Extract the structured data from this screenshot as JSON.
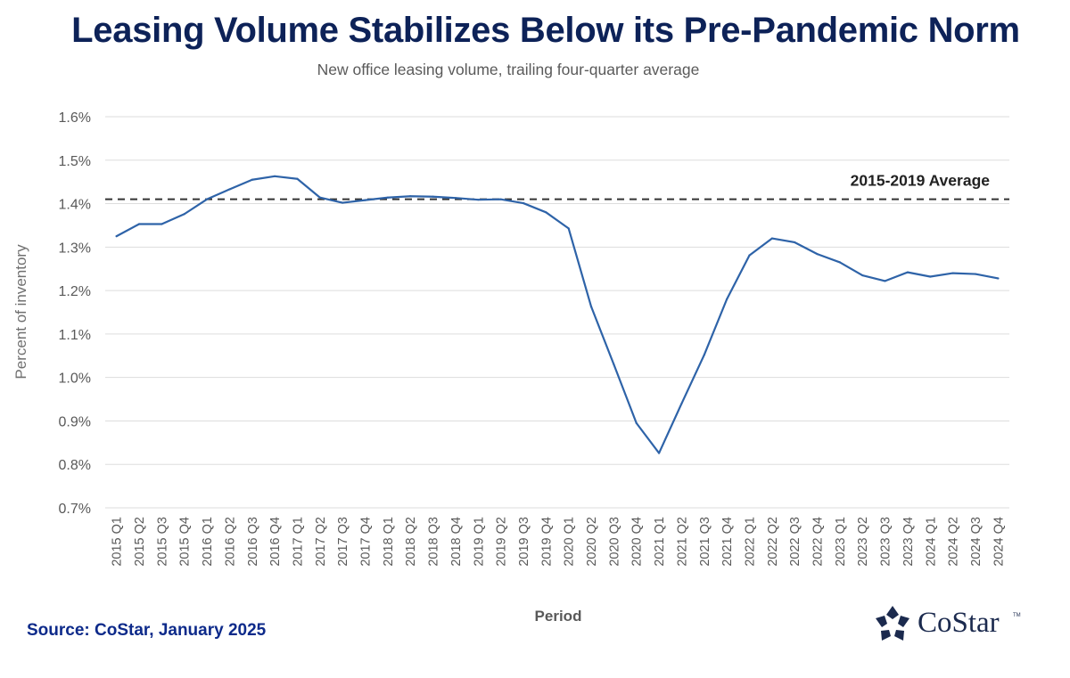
{
  "chart_data": {
    "type": "line",
    "title": "Leasing Volume Stabilizes Below its Pre-Pandemic Norm",
    "subtitle": "New office leasing volume, trailing four-quarter average",
    "xlabel": "Period",
    "ylabel": "Percent of inventory",
    "ylim": [
      0.7,
      1.6
    ],
    "y_ticks": [
      "0.7%",
      "0.8%",
      "0.9%",
      "1.0%",
      "1.1%",
      "1.2%",
      "1.3%",
      "1.4%",
      "1.5%",
      "1.6%"
    ],
    "grid": true,
    "categories": [
      "2015 Q1",
      "2015 Q2",
      "2015 Q3",
      "2015 Q4",
      "2016 Q1",
      "2016 Q2",
      "2016 Q3",
      "2016 Q4",
      "2017 Q1",
      "2017 Q2",
      "2017 Q3",
      "2017 Q4",
      "2018 Q1",
      "2018 Q2",
      "2018 Q3",
      "2018 Q4",
      "2019 Q1",
      "2019 Q2",
      "2019 Q3",
      "2019 Q4",
      "2020 Q1",
      "2020 Q2",
      "2020 Q3",
      "2020 Q4",
      "2021 Q1",
      "2021 Q2",
      "2021 Q3",
      "2021 Q4",
      "2022 Q1",
      "2022 Q2",
      "2022 Q3",
      "2022 Q4",
      "2023 Q1",
      "2023 Q2",
      "2023 Q3",
      "2023 Q4",
      "2024 Q1",
      "2024 Q2",
      "2024 Q3",
      "2024 Q4"
    ],
    "series": [
      {
        "values": [
          1.325,
          1.353,
          1.353,
          1.376,
          1.41,
          1.433,
          1.455,
          1.463,
          1.457,
          1.414,
          1.402,
          1.408,
          1.414,
          1.417,
          1.416,
          1.413,
          1.409,
          1.41,
          1.401,
          1.38,
          1.343,
          1.163,
          1.03,
          0.895,
          0.826,
          0.94,
          1.052,
          1.18,
          1.281,
          1.32,
          1.311,
          1.284,
          1.265,
          1.235,
          1.222,
          1.242,
          1.232,
          1.24,
          1.238,
          1.228
        ],
        "color": "#2e63a8"
      }
    ],
    "reference_line": {
      "label": "2015-2019 Average",
      "value": 1.41,
      "color": "#333333"
    }
  },
  "footer": {
    "source": "Source: CoStar, January 2025",
    "logo_text": "CoStar",
    "logo_tm": "TM"
  },
  "colors": {
    "title": "#0d2258",
    "source": "#0d2a8a",
    "grid": "#dddddd",
    "axis_text": "#595959"
  }
}
